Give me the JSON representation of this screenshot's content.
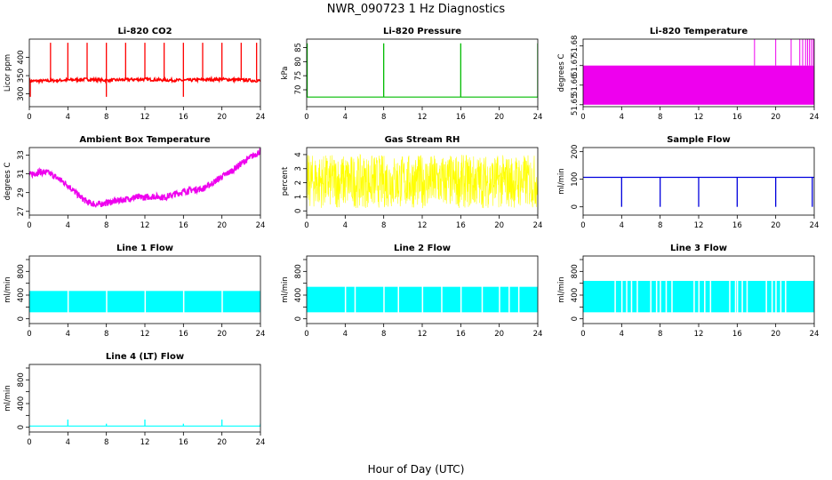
{
  "figure": {
    "title": "NWR_090723  1 Hz Diagnostics",
    "xlabel": "Hour of Day (UTC)"
  },
  "chart_data": [
    {
      "type": "line",
      "title": "Li-820 CO2",
      "ylabel": "Licor ppm",
      "color": "#ff0000",
      "xlim": [
        0,
        24
      ],
      "ylim": [
        265,
        450
      ],
      "yticks": [
        300,
        350,
        400
      ],
      "xticks": [
        0,
        4,
        8,
        12,
        16,
        20,
        24
      ],
      "baseline": {
        "x": [
          0,
          2,
          4,
          6,
          8,
          10,
          12,
          14,
          16,
          18,
          20,
          22,
          24
        ],
        "y": [
          335,
          336,
          338,
          340,
          337,
          339,
          340,
          338,
          337,
          339,
          340,
          338,
          336
        ]
      },
      "spikes_up_x": [
        2.2,
        4,
        6,
        8,
        10,
        12,
        14,
        16,
        18,
        20,
        22,
        23.6
      ],
      "spike_peak": 440,
      "spikes_down_x": [
        0.1,
        8,
        16
      ],
      "spike_low": 292
    },
    {
      "type": "line",
      "title": "Li-820 Pressure",
      "ylabel": "kPa",
      "color": "#00bb00",
      "xlim": [
        0,
        24
      ],
      "ylim": [
        64,
        88
      ],
      "yticks": [
        70,
        75,
        80,
        85
      ],
      "xticks": [
        0,
        4,
        8,
        12,
        16,
        20,
        24
      ],
      "baseline": {
        "x": [
          0,
          24
        ],
        "y": [
          67.4,
          67.4
        ]
      },
      "spikes_up_x": [
        0.05,
        8,
        16,
        24
      ],
      "spike_peak": 86.5
    },
    {
      "type": "area",
      "title": "Li-820 Temperature",
      "ylabel": "degrees C",
      "color": "#ee00ee",
      "xlim": [
        0,
        24
      ],
      "ylim": [
        51.649,
        51.6835
      ],
      "yticks": [
        51.65,
        51.66,
        51.67,
        51.68
      ],
      "ytick_labels": [
        "51.65",
        "51.66",
        "51.67",
        "51.68"
      ],
      "xticks": [
        0,
        4,
        8,
        12,
        16,
        20,
        24
      ],
      "band": [
        51.65,
        51.67
      ],
      "spikes_up_x": [
        17.8,
        20,
        21.6,
        22.5,
        22.8,
        23.1,
        23.3,
        23.5,
        23.7,
        23.9
      ],
      "spike_peak": 51.685
    },
    {
      "type": "line",
      "title": "Ambient Box Temperature",
      "ylabel": "degrees C",
      "color": "#ee00ee",
      "xlim": [
        0,
        24
      ],
      "ylim": [
        26.6,
        33.8
      ],
      "yticks": [
        27,
        29,
        31,
        33
      ],
      "xticks": [
        0,
        4,
        8,
        12,
        16,
        20,
        24
      ],
      "baseline": {
        "x": [
          0,
          1,
          2,
          3,
          4,
          5,
          6,
          7,
          8,
          9,
          10,
          11,
          12,
          13,
          14,
          15,
          16,
          17,
          18,
          19,
          20,
          21,
          22,
          23,
          24
        ],
        "y": [
          30.9,
          31.2,
          31.1,
          30.5,
          29.8,
          28.8,
          28,
          27.7,
          27.9,
          28.1,
          28.3,
          28.5,
          28.5,
          28.6,
          28.5,
          28.8,
          29.1,
          29.3,
          29.4,
          30,
          30.7,
          31.3,
          32.1,
          32.8,
          33.4
        ]
      },
      "noise": 0.35
    },
    {
      "type": "line",
      "title": "Gas Stream RH",
      "ylabel": "percent",
      "color": "#ffff00",
      "xlim": [
        0,
        24
      ],
      "ylim": [
        -0.3,
        4.5
      ],
      "yticks": [
        0,
        1,
        2,
        3,
        4
      ],
      "xticks": [
        0,
        4,
        8,
        12,
        16,
        20,
        24
      ],
      "band": [
        0.2,
        4.0
      ],
      "center": 2.2
    },
    {
      "type": "line",
      "title": "Sample Flow",
      "ylabel": "ml/min",
      "color": "#0000dd",
      "xlim": [
        0,
        24
      ],
      "ylim": [
        -30,
        215
      ],
      "yticks": [
        0,
        100,
        200
      ],
      "xticks": [
        0,
        4,
        8,
        12,
        16,
        20,
        24
      ],
      "baseline": {
        "x": [
          0,
          24
        ],
        "y": [
          107,
          107
        ]
      },
      "spikes_down_x": [
        4,
        8,
        12,
        16,
        20,
        23.8
      ],
      "spike_low": 0
    },
    {
      "type": "area",
      "title": "Line 1 Flow",
      "ylabel": "ml/min",
      "color": "#00ffff",
      "xlim": [
        0,
        24
      ],
      "ylim": [
        -80,
        1060
      ],
      "yticks": [
        0,
        200,
        400,
        600,
        800,
        1000
      ],
      "ytick_labels": [
        "0",
        "400",
        "800"
      ],
      "xticks": [
        0,
        4,
        8,
        12,
        16,
        20,
        24
      ],
      "band": [
        110,
        470
      ],
      "gaps_x": [
        4,
        8,
        12,
        16,
        20
      ],
      "end_x": 24
    },
    {
      "type": "area",
      "title": "Line 2 Flow",
      "ylabel": "ml/min",
      "color": "#00ffff",
      "xlim": [
        0,
        24
      ],
      "ylim": [
        -80,
        1060
      ],
      "yticks": [
        0,
        200,
        400,
        600,
        800,
        1000
      ],
      "ytick_labels": [
        "0",
        "400",
        "800"
      ],
      "xticks": [
        0,
        4,
        8,
        12,
        16,
        20,
        24
      ],
      "band": [
        110,
        540
      ],
      "gaps_x": [
        4,
        5,
        8,
        9.5,
        12,
        14,
        16,
        18.2,
        20,
        21,
        22
      ],
      "end_x": 24
    },
    {
      "type": "area",
      "title": "Line 3 Flow",
      "ylabel": "ml/min",
      "color": "#00ffff",
      "xlim": [
        0,
        24
      ],
      "ylim": [
        -80,
        1060
      ],
      "yticks": [
        0,
        200,
        400,
        600,
        800,
        1000
      ],
      "ytick_labels": [
        "0",
        "400",
        "800"
      ],
      "xticks": [
        0,
        4,
        8,
        12,
        16,
        20,
        24
      ],
      "band": [
        110,
        640
      ],
      "gaps_x": [
        3.3,
        4,
        4.5,
        5,
        5.6,
        7,
        7.6,
        8,
        8.6,
        9.2,
        11.5,
        12,
        12.6,
        13.2,
        15.2,
        15.8,
        16,
        16.5,
        17,
        19,
        19.6,
        20,
        20.5,
        21
      ],
      "end_x": 24
    },
    {
      "type": "line",
      "title": "Line 4 (LT) Flow",
      "ylabel": "ml/min",
      "color": "#00ffff",
      "xlim": [
        0,
        24
      ],
      "ylim": [
        -80,
        1060
      ],
      "yticks": [
        0,
        200,
        400,
        600,
        800,
        1000
      ],
      "ytick_labels": [
        "0",
        "400",
        "800"
      ],
      "xticks": [
        0,
        4,
        8,
        12,
        16,
        20,
        24
      ],
      "baseline": {
        "x": [
          0,
          24
        ],
        "y": [
          20,
          20
        ]
      },
      "spikes_up_x": [
        4,
        8,
        12,
        16,
        20,
        24
      ],
      "spike_peaks": [
        130,
        60,
        130,
        60,
        130,
        60
      ]
    }
  ]
}
